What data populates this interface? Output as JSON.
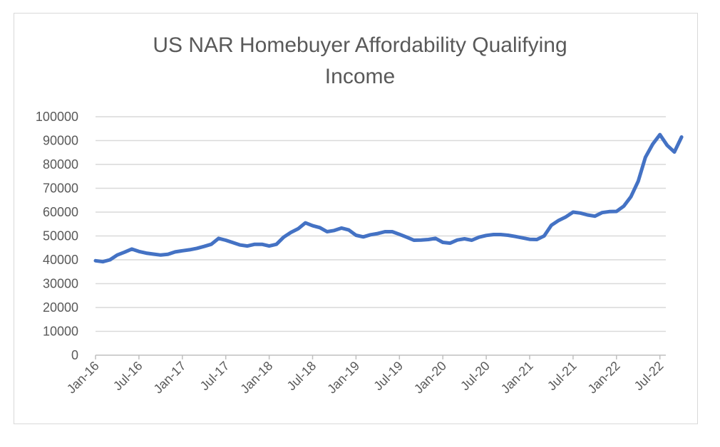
{
  "chart_data": {
    "type": "line",
    "title": "US NAR Homebuyer Affordability Qualifying Income",
    "title_lines": [
      "US NAR Homebuyer  Affordability Qualifying",
      "Income"
    ],
    "xlabel": "",
    "ylabel": "",
    "ylim": [
      0,
      100000
    ],
    "y_ticks": [
      0,
      10000,
      20000,
      30000,
      40000,
      50000,
      60000,
      70000,
      80000,
      90000,
      100000
    ],
    "y_tick_labels": [
      "0",
      "10000",
      "20000",
      "30000",
      "40000",
      "50000",
      "60000",
      "70000",
      "80000",
      "90000",
      "100000"
    ],
    "x_tick_labels": [
      "Jan-16",
      "Jul-16",
      "Jan-17",
      "Jul-17",
      "Jan-18",
      "Jul-18",
      "Jan-19",
      "Jul-19",
      "Jan-20",
      "Jul-20",
      "Jan-21",
      "Jul-21",
      "Jan-22",
      "Jul-22"
    ],
    "x_start": "Jan-16",
    "grid": true,
    "legend": "none",
    "series": [
      {
        "color": "#4472c4",
        "values": [
          39600,
          39200,
          40000,
          42000,
          43200,
          44500,
          43500,
          42800,
          42400,
          42000,
          42300,
          43300,
          43800,
          44200,
          44800,
          45600,
          46500,
          49000,
          48200,
          47200,
          46200,
          45800,
          46500,
          46500,
          45800,
          46500,
          49500,
          51500,
          53000,
          55500,
          54300,
          53500,
          51800,
          52300,
          53300,
          52500,
          50300,
          49600,
          50500,
          51000,
          51800,
          51800,
          50700,
          49500,
          48200,
          48300,
          48500,
          49000,
          47300,
          47000,
          48300,
          48800,
          48200,
          49500,
          50200,
          50600,
          50600,
          50300,
          49800,
          49200,
          48600,
          48500,
          50000,
          54500,
          56500,
          58000,
          60000,
          59600,
          58800,
          58300,
          59800,
          60200,
          60300,
          62500,
          66500,
          73000,
          83000,
          88500,
          92500,
          88000,
          85200,
          91500
        ]
      }
    ]
  }
}
